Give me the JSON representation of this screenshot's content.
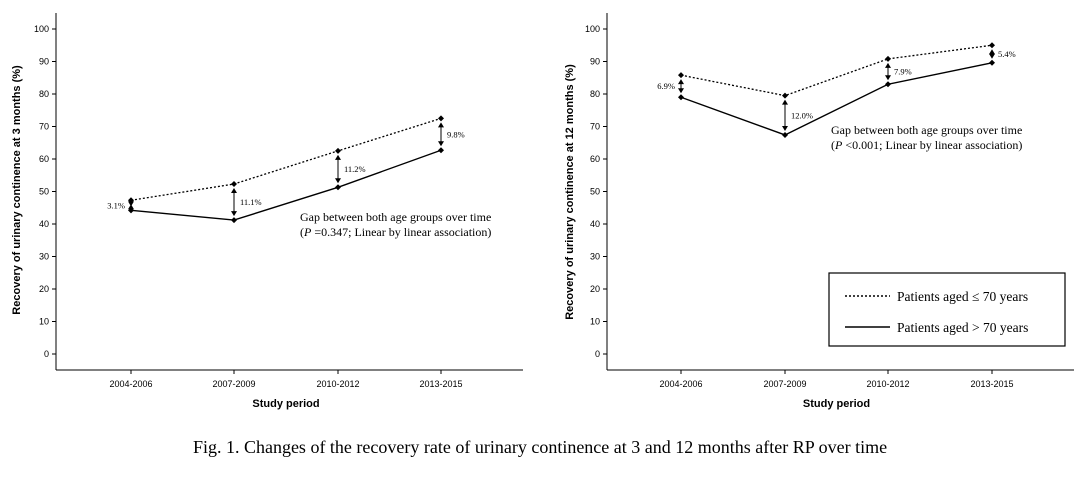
{
  "caption": "Fig. 1. Changes of the recovery rate of urinary continence at 3 and 12 months after RP over time",
  "legend": {
    "entries": [
      {
        "label": "Patients aged ≤ 70 years",
        "style": "dotted"
      },
      {
        "label": "Patients aged > 70 years",
        "style": "solid"
      }
    ]
  },
  "chart_data": [
    {
      "type": "line",
      "title": "",
      "xlabel": "Study period",
      "ylabel": "Recovery of urinary continence at 3 months (%)",
      "ylim": [
        0,
        100
      ],
      "yticks": [
        0,
        10,
        20,
        30,
        40,
        50,
        60,
        70,
        80,
        90,
        100
      ],
      "grid": false,
      "categories": [
        "2004-2006",
        "2007-2009",
        "2010-2012",
        "2013-2015"
      ],
      "series": [
        {
          "name": "Patients aged ≤ 70 years",
          "style": "dotted",
          "values": [
            47.3,
            52.3,
            62.5,
            72.5
          ]
        },
        {
          "name": "Patients aged > 70 years",
          "style": "solid",
          "values": [
            44.2,
            41.2,
            51.3,
            62.7
          ]
        }
      ],
      "gap_labels": [
        "3.1%",
        "11.1%",
        "11.2%",
        "9.8%"
      ],
      "annotation": {
        "line1": "Gap between both age groups over time",
        "p_symbol": "P",
        "p_rest": " =0.347; Linear by linear association)"
      }
    },
    {
      "type": "line",
      "title": "",
      "xlabel": "Study period",
      "ylabel": "Recovery of urinary continence at 12 months (%)",
      "ylim": [
        0,
        100
      ],
      "yticks": [
        0,
        10,
        20,
        30,
        40,
        50,
        60,
        70,
        80,
        90,
        100
      ],
      "grid": false,
      "categories": [
        "2004-2006",
        "2007-2009",
        "2010-2012",
        "2013-2015"
      ],
      "series": [
        {
          "name": "Patients aged ≤ 70 years",
          "style": "dotted",
          "values": [
            85.8,
            79.5,
            90.8,
            95.0
          ]
        },
        {
          "name": "Patients aged > 70 years",
          "style": "solid",
          "values": [
            79.0,
            67.4,
            83.0,
            89.6
          ]
        }
      ],
      "gap_labels": [
        "6.9%",
        "12.0%",
        "7.9%",
        "5.4%"
      ],
      "annotation": {
        "line1": "Gap between both age groups over time",
        "p_symbol": "P",
        "p_rest": " <0.001; Linear by linear association)"
      }
    }
  ]
}
